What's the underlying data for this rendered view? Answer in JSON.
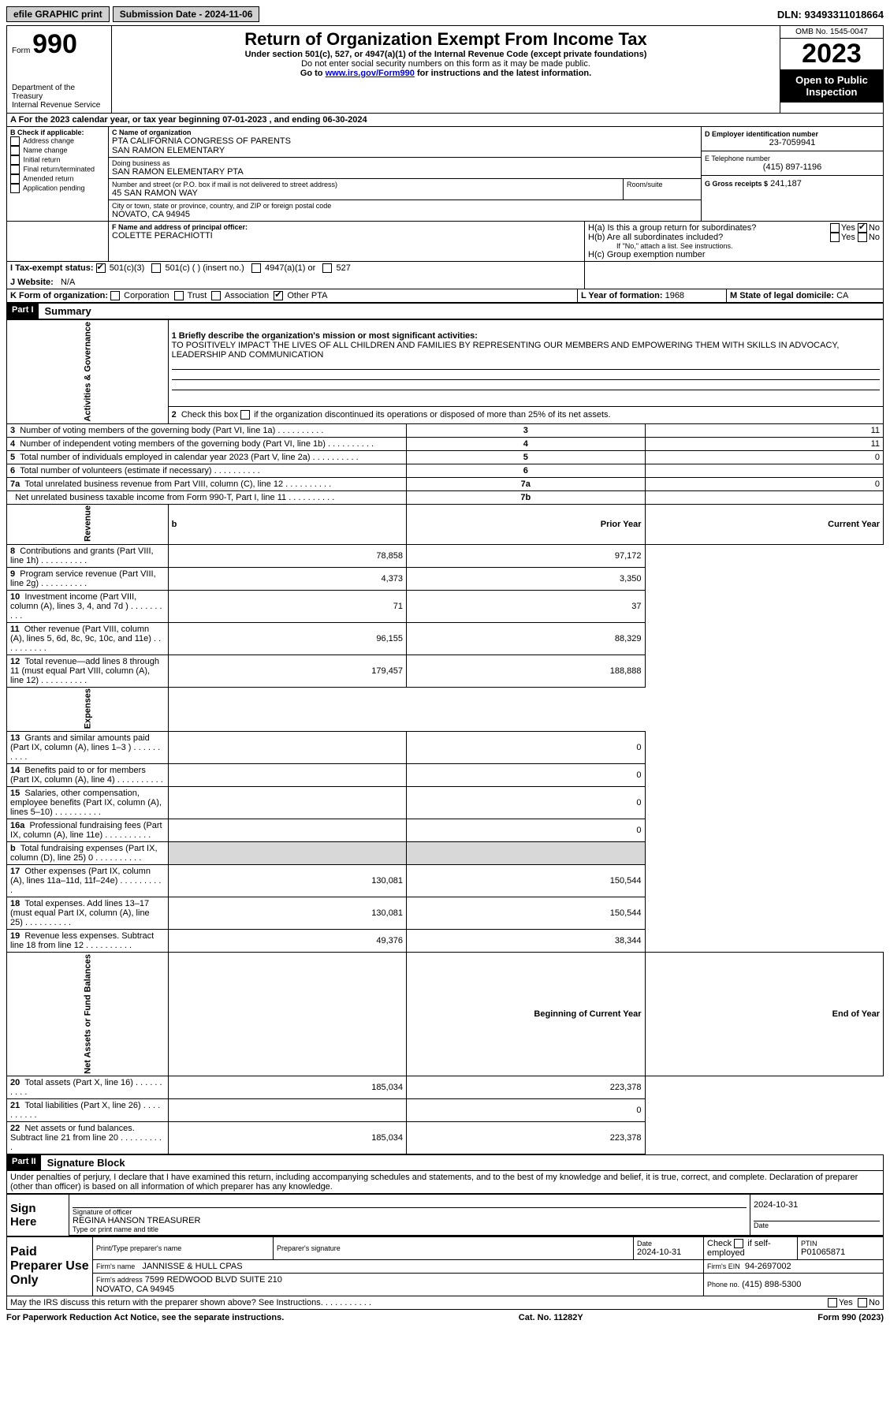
{
  "topbar": {
    "efile": "efile GRAPHIC print",
    "submission_label": "Submission Date - 2024-11-06",
    "dln_label": "DLN: 93493311018664"
  },
  "header": {
    "form_label": "Form",
    "form_num": "990",
    "dept": "Department of the Treasury\nInternal Revenue Service",
    "title": "Return of Organization Exempt From Income Tax",
    "subtitle": "Under section 501(c), 527, or 4947(a)(1) of the Internal Revenue Code (except private foundations)",
    "note1": "Do not enter social security numbers on this form as it may be made public.",
    "note2_pre": "Go to ",
    "note2_link": "www.irs.gov/Form990",
    "note2_post": " for instructions and the latest information.",
    "omb": "OMB No. 1545-0047",
    "year": "2023",
    "open": "Open to Public Inspection"
  },
  "sectionA": {
    "line": "A For the 2023 calendar year, or tax year beginning 07-01-2023   , and ending 06-30-2024"
  },
  "sectionB": {
    "label": "B Check if applicable:",
    "items": [
      "Address change",
      "Name change",
      "Initial return",
      "Final return/terminated",
      "Amended return",
      "Application pending"
    ]
  },
  "sectionC": {
    "label": "C Name of organization",
    "name": "PTA CALIFORNIA CONGRESS OF PARENTS\nSAN RAMON ELEMENTARY",
    "dba_label": "Doing business as",
    "dba": "SAN RAMON ELEMENTARY PTA",
    "addr_label": "Number and street (or P.O. box if mail is not delivered to street address)",
    "addr": "45 SAN RAMON WAY",
    "room_label": "Room/suite",
    "city_label": "City or town, state or province, country, and ZIP or foreign postal code",
    "city": "NOVATO, CA  94945"
  },
  "sectionD": {
    "label": "D Employer identification number",
    "value": "23-7059941"
  },
  "sectionE": {
    "label": "E Telephone number",
    "value": "(415) 897-1196"
  },
  "sectionG": {
    "label": "G Gross receipts $",
    "value": "241,187"
  },
  "sectionF": {
    "label": "F  Name and address of principal officer:",
    "value": "COLETTE PERACHIOTTI"
  },
  "sectionH": {
    "ha": "H(a)  Is this a group return for subordinates?",
    "hb": "H(b)  Are all subordinates included?",
    "hb_note": "If \"No,\" attach a list. See instructions.",
    "hc": "H(c)  Group exemption number",
    "yes": "Yes",
    "no": "No"
  },
  "sectionI": {
    "label": "I    Tax-exempt status:",
    "c3": "501(c)(3)",
    "c": "501(c) (  ) (insert no.)",
    "a1": "4947(a)(1) or",
    "s527": "527"
  },
  "sectionJ": {
    "label": "J    Website:",
    "value": "N/A"
  },
  "sectionK": {
    "label": "K Form of organization:",
    "corp": "Corporation",
    "trust": "Trust",
    "assoc": "Association",
    "other": "Other",
    "other_val": "PTA"
  },
  "sectionL": {
    "label": "L Year of formation:",
    "value": "1968"
  },
  "sectionM": {
    "label": "M State of legal domicile:",
    "value": "CA"
  },
  "part1": {
    "header": "Part I",
    "title": "Summary",
    "q1_label": "1   Briefly describe the organization's mission or most significant activities:",
    "q1_value": "TO POSITIVELY IMPACT THE LIVES OF ALL CHILDREN AND FAMILIES BY REPRESENTING OUR MEMBERS AND EMPOWERING THEM WITH SKILLS IN ADVOCACY, LEADERSHIP AND COMMUNICATION",
    "q2": "2   Check this box       if the organization discontinued its operations or disposed of more than 25% of its net assets.",
    "vlabels": {
      "gov": "Activities & Governance",
      "rev": "Revenue",
      "exp": "Expenses",
      "net": "Net Assets or Fund Balances"
    },
    "gov_lines": [
      {
        "n": "3",
        "t": "Number of voting members of the governing body (Part VI, line 1a)",
        "k": "3",
        "v": "11"
      },
      {
        "n": "4",
        "t": "Number of independent voting members of the governing body (Part VI, line 1b)",
        "k": "4",
        "v": "11"
      },
      {
        "n": "5",
        "t": "Total number of individuals employed in calendar year 2023 (Part V, line 2a)",
        "k": "5",
        "v": "0"
      },
      {
        "n": "6",
        "t": "Total number of volunteers (estimate if necessary)",
        "k": "6",
        "v": ""
      },
      {
        "n": "7a",
        "t": "Total unrelated business revenue from Part VIII, column (C), line 12",
        "k": "7a",
        "v": "0"
      },
      {
        "n": "",
        "t": "Net unrelated business taxable income from Form 990-T, Part I, line 11",
        "k": "7b",
        "v": ""
      }
    ],
    "col_b": "b",
    "col_prior": "Prior Year",
    "col_curr": "Current Year",
    "rev_lines": [
      {
        "n": "8",
        "t": "Contributions and grants (Part VIII, line 1h)",
        "p": "78,858",
        "c": "97,172"
      },
      {
        "n": "9",
        "t": "Program service revenue (Part VIII, line 2g)",
        "p": "4,373",
        "c": "3,350"
      },
      {
        "n": "10",
        "t": "Investment income (Part VIII, column (A), lines 3, 4, and 7d )",
        "p": "71",
        "c": "37"
      },
      {
        "n": "11",
        "t": "Other revenue (Part VIII, column (A), lines 5, 6d, 8c, 9c, 10c, and 11e)",
        "p": "96,155",
        "c": "88,329"
      },
      {
        "n": "12",
        "t": "Total revenue—add lines 8 through 11 (must equal Part VIII, column (A), line 12)",
        "p": "179,457",
        "c": "188,888"
      }
    ],
    "exp_lines": [
      {
        "n": "13",
        "t": "Grants and similar amounts paid (Part IX, column (A), lines 1–3 )",
        "p": "",
        "c": "0"
      },
      {
        "n": "14",
        "t": "Benefits paid to or for members (Part IX, column (A), line 4)",
        "p": "",
        "c": "0"
      },
      {
        "n": "15",
        "t": "Salaries, other compensation, employee benefits (Part IX, column (A), lines 5–10)",
        "p": "",
        "c": "0"
      },
      {
        "n": "16a",
        "t": "Professional fundraising fees (Part IX, column (A), line 11e)",
        "p": "",
        "c": "0"
      },
      {
        "n": "b",
        "t": "Total fundraising expenses (Part IX, column (D), line 25) 0",
        "p": "shaded",
        "c": "shaded"
      },
      {
        "n": "17",
        "t": "Other expenses (Part IX, column (A), lines 11a–11d, 11f–24e)",
        "p": "130,081",
        "c": "150,544"
      },
      {
        "n": "18",
        "t": "Total expenses. Add lines 13–17 (must equal Part IX, column (A), line 25)",
        "p": "130,081",
        "c": "150,544"
      },
      {
        "n": "19",
        "t": "Revenue less expenses. Subtract line 18 from line 12",
        "p": "49,376",
        "c": "38,344"
      }
    ],
    "col_begin": "Beginning of Current Year",
    "col_end": "End of Year",
    "net_lines": [
      {
        "n": "20",
        "t": "Total assets (Part X, line 16)",
        "p": "185,034",
        "c": "223,378"
      },
      {
        "n": "21",
        "t": "Total liabilities (Part X, line 26)",
        "p": "",
        "c": "0"
      },
      {
        "n": "22",
        "t": "Net assets or fund balances. Subtract line 21 from line 20",
        "p": "185,034",
        "c": "223,378"
      }
    ]
  },
  "part2": {
    "header": "Part II",
    "title": "Signature Block",
    "declaration": "Under penalties of perjury, I declare that I have examined this return, including accompanying schedules and statements, and to the best of my knowledge and belief, it is true, correct, and complete. Declaration of preparer (other than officer) is based on all information of which preparer has any knowledge.",
    "sign_here": "Sign Here",
    "sig_officer": "Signature of officer",
    "sig_name": "REGINA HANSON  TREASURER",
    "sig_title": "Type or print name and title",
    "sig_date_label": "Date",
    "sig_date": "2024-10-31",
    "paid": "Paid Preparer Use Only",
    "prep_name_label": "Print/Type preparer's name",
    "prep_sig_label": "Preparer's signature",
    "prep_date_label": "Date",
    "prep_date": "2024-10-31",
    "check_label": "Check         if self-employed",
    "ptin_label": "PTIN",
    "ptin": "P01065871",
    "firm_name_label": "Firm's name",
    "firm_name": "JANNISSE & HULL CPAS",
    "firm_ein_label": "Firm's EIN",
    "firm_ein": "94-2697002",
    "firm_addr_label": "Firm's address",
    "firm_addr": "7599 REDWOOD BLVD SUITE 210\nNOVATO, CA  94945",
    "phone_label": "Phone no.",
    "phone": "(415) 898-5300",
    "discuss": "May the IRS discuss this return with the preparer shown above? See Instructions.",
    "yes": "Yes",
    "no": "No"
  },
  "footer": {
    "left": "For Paperwork Reduction Act Notice, see the separate instructions.",
    "mid": "Cat. No. 11282Y",
    "right": "Form 990 (2023)"
  }
}
